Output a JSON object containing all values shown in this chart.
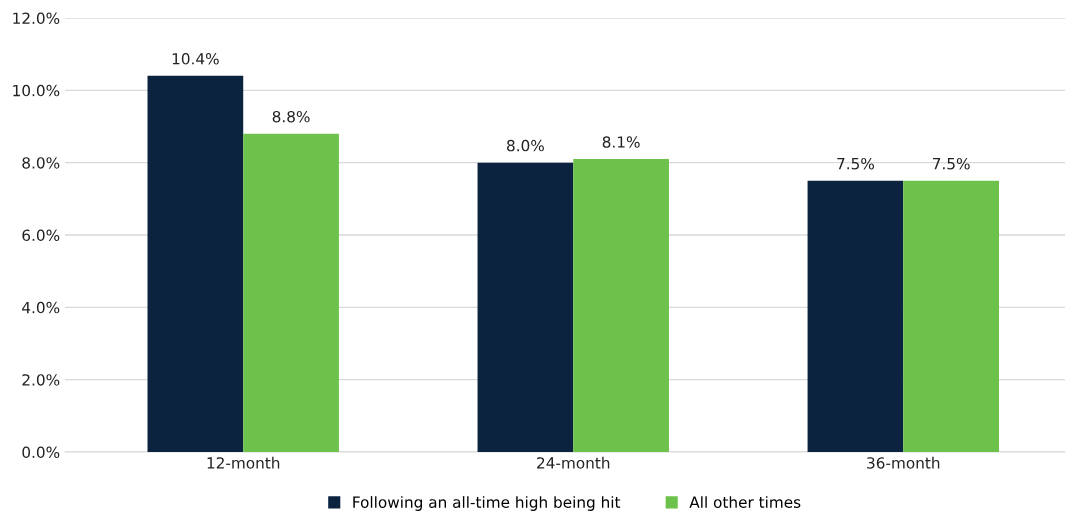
{
  "chart_data": {
    "type": "bar",
    "categories": [
      "12-month",
      "24-month",
      "36-month"
    ],
    "series": [
      {
        "name": "Following an all-time high being hit",
        "color": "#0c2340",
        "values": [
          10.4,
          8.0,
          7.5
        ],
        "value_labels": [
          "10.4%",
          "8.0%",
          "7.5%"
        ]
      },
      {
        "name": "All other times",
        "color": "#6cc24a",
        "values": [
          8.8,
          8.1,
          7.5
        ],
        "value_labels": [
          "8.8%",
          "8.1%",
          "7.5%"
        ]
      }
    ],
    "ylim": [
      0,
      12
    ],
    "yticks": [
      {
        "value": 0,
        "label": "0.0%"
      },
      {
        "value": 2,
        "label": "2.0%"
      },
      {
        "value": 4,
        "label": "4.0%"
      },
      {
        "value": 6,
        "label": "6.0%"
      },
      {
        "value": 8,
        "label": "8.0%"
      },
      {
        "value": 10,
        "label": "10.0%"
      },
      {
        "value": 12,
        "label": "12.0%"
      }
    ],
    "grid": "y",
    "legend": "bottom"
  }
}
